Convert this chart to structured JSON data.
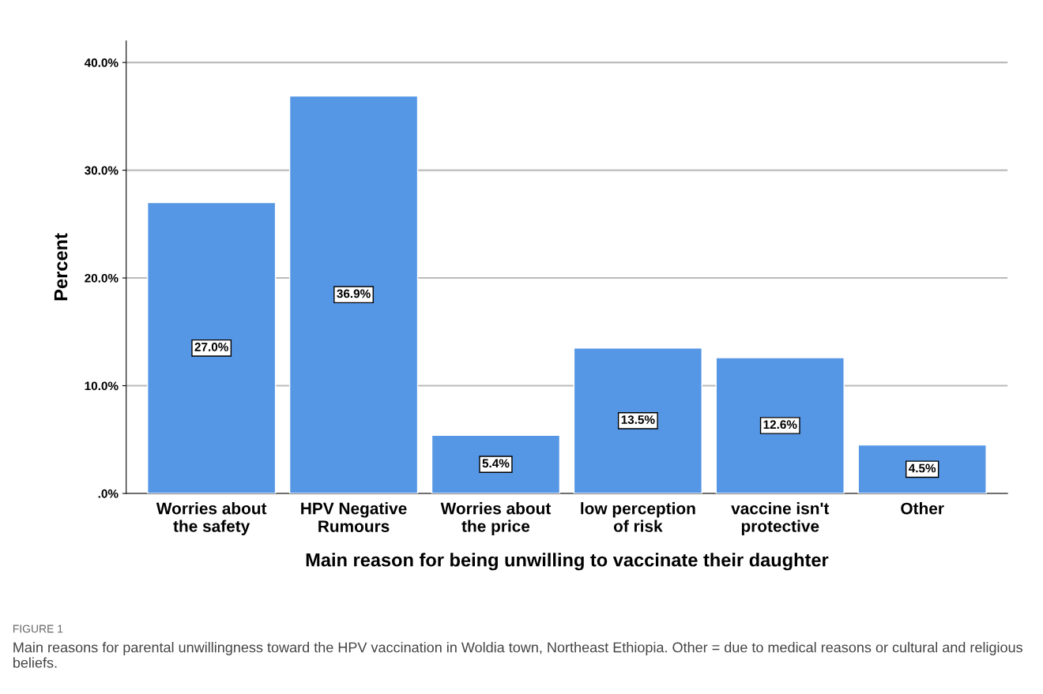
{
  "chart_data": {
    "type": "bar",
    "categories": [
      "Worries about the safety",
      "HPV Negative Rumours",
      "Worries about the price",
      "low perception of risk",
      "vaccine isn't protective",
      "Other"
    ],
    "values": [
      27.0,
      36.9,
      5.4,
      13.5,
      12.6,
      4.5
    ],
    "value_labels": [
      "27.0%",
      "36.9%",
      "5.4%",
      "13.5%",
      "12.6%",
      "4.5%"
    ],
    "color": "#5596e5",
    "ylim": [
      0,
      42
    ],
    "yticks": [
      {
        "value": 0,
        "label": ".0%"
      },
      {
        "value": 10,
        "label": "10.0%"
      },
      {
        "value": 20,
        "label": "20.0%"
      },
      {
        "value": 30,
        "label": "30.0%"
      },
      {
        "value": 40,
        "label": "40.0%"
      }
    ],
    "grid": "y",
    "ylabel": "Percent",
    "xlabel": "Main reason for being unwilling to vaccinate their daughter",
    "annotations": [
      "FIGURE 1",
      "Main reasons for parental unwillingness toward the HPV vaccination in Woldia town, Northeast Ethiopia. Other = due to medical reasons or cultural and religious beliefs."
    ]
  }
}
